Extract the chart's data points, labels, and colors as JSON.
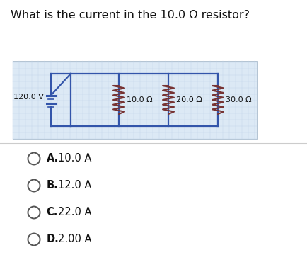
{
  "title": "What is the current in the 10.0 Ω resistor?",
  "title_fontsize": 11.5,
  "bg_color": "#ffffff",
  "circuit_bg": "#dce9f5",
  "circuit_border": "#aabbcc",
  "voltage_label": "120.0 V",
  "resistor_labels": [
    "10.0 Ω",
    "20.0 Ω",
    "30.0 Ω"
  ],
  "choices": [
    {
      "letter": "A.",
      "text": "10.0 A"
    },
    {
      "letter": "B.",
      "text": "12.0 A"
    },
    {
      "letter": "C.",
      "text": "22.0 A"
    },
    {
      "letter": "D.",
      "text": "2.00 A"
    }
  ],
  "circuit_line_color": "#3355aa",
  "resistor_color": "#773333",
  "separator_color": "#cccccc",
  "circle_color": "#555555",
  "text_color": "#111111"
}
